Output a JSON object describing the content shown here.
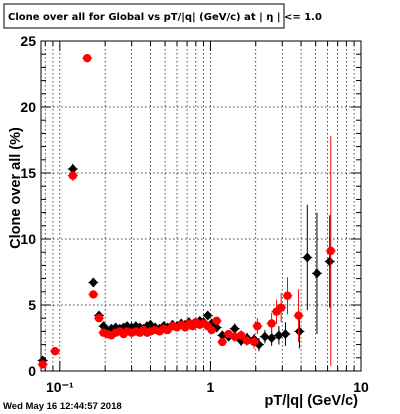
{
  "chart_data": {
    "type": "scatter",
    "title": "Clone  over all for Global vs pT/|q| (GeV/c) at |  η | <= 1.0",
    "xlabel": "pT/|q| (GeV/c)",
    "ylabel": "Clone  over all (%)",
    "xscale": "log",
    "xlim": [
      0.075,
      10
    ],
    "ylim": [
      0,
      25
    ],
    "grid": true,
    "x_tick_labels": [
      "10⁻¹",
      "1",
      "10"
    ],
    "y_tick_labels": [
      "0",
      "5",
      "10",
      "15",
      "20",
      "25"
    ],
    "series": [
      {
        "color": "#000000",
        "marker": "diamond",
        "points": [
          {
            "x": 0.077,
            "y": 0.8,
            "yerr": 0.3
          },
          {
            "x": 0.122,
            "y": 15.3,
            "yerr": 0.4
          },
          {
            "x": 0.167,
            "y": 6.7,
            "yerr": 0.3
          },
          {
            "x": 0.182,
            "y": 4.2,
            "yerr": 0.2
          },
          {
            "x": 0.195,
            "y": 3.4,
            "yerr": 0.2
          },
          {
            "x": 0.207,
            "y": 3.0,
            "yerr": 0.2
          },
          {
            "x": 0.22,
            "y": 3.2,
            "yerr": 0.2
          },
          {
            "x": 0.235,
            "y": 3.3,
            "yerr": 0.2
          },
          {
            "x": 0.25,
            "y": 3.2,
            "yerr": 0.2
          },
          {
            "x": 0.265,
            "y": 3.3,
            "yerr": 0.2
          },
          {
            "x": 0.28,
            "y": 3.4,
            "yerr": 0.2
          },
          {
            "x": 0.3,
            "y": 3.3,
            "yerr": 0.2
          },
          {
            "x": 0.32,
            "y": 3.4,
            "yerr": 0.2
          },
          {
            "x": 0.34,
            "y": 3.3,
            "yerr": 0.2
          },
          {
            "x": 0.36,
            "y": 3.2,
            "yerr": 0.2
          },
          {
            "x": 0.38,
            "y": 3.4,
            "yerr": 0.2
          },
          {
            "x": 0.4,
            "y": 3.5,
            "yerr": 0.2
          },
          {
            "x": 0.43,
            "y": 3.3,
            "yerr": 0.2
          },
          {
            "x": 0.46,
            "y": 3.2,
            "yerr": 0.2
          },
          {
            "x": 0.49,
            "y": 3.4,
            "yerr": 0.2
          },
          {
            "x": 0.52,
            "y": 3.3,
            "yerr": 0.2
          },
          {
            "x": 0.56,
            "y": 3.5,
            "yerr": 0.2
          },
          {
            "x": 0.6,
            "y": 3.4,
            "yerr": 0.2
          },
          {
            "x": 0.64,
            "y": 3.6,
            "yerr": 0.2
          },
          {
            "x": 0.68,
            "y": 3.5,
            "yerr": 0.2
          },
          {
            "x": 0.72,
            "y": 3.7,
            "yerr": 0.2
          },
          {
            "x": 0.76,
            "y": 3.5,
            "yerr": 0.2
          },
          {
            "x": 0.8,
            "y": 3.6,
            "yerr": 0.2
          },
          {
            "x": 0.85,
            "y": 3.8,
            "yerr": 0.3
          },
          {
            "x": 0.9,
            "y": 3.7,
            "yerr": 0.3
          },
          {
            "x": 0.96,
            "y": 4.2,
            "yerr": 0.3
          },
          {
            "x": 1.02,
            "y": 3.6,
            "yerr": 0.3
          },
          {
            "x": 1.1,
            "y": 3.3,
            "yerr": 0.3
          },
          {
            "x": 1.2,
            "y": 2.7,
            "yerr": 0.3
          },
          {
            "x": 1.32,
            "y": 2.6,
            "yerr": 0.3
          },
          {
            "x": 1.45,
            "y": 3.2,
            "yerr": 0.4
          },
          {
            "x": 1.6,
            "y": 2.3,
            "yerr": 0.4
          },
          {
            "x": 1.75,
            "y": 2.5,
            "yerr": 0.4
          },
          {
            "x": 1.95,
            "y": 2.4,
            "yerr": 0.4
          },
          {
            "x": 2.1,
            "y": 2.0,
            "yerr": 0.5
          },
          {
            "x": 2.3,
            "y": 2.6,
            "yerr": 0.5
          },
          {
            "x": 2.55,
            "y": 2.5,
            "yerr": 0.6
          },
          {
            "x": 2.85,
            "y": 2.7,
            "yerr": 0.7
          },
          {
            "x": 3.15,
            "y": 2.8,
            "yerr": 0.9
          },
          {
            "x": 3.9,
            "y": 3.0,
            "yerr": 1.3
          },
          {
            "x": 4.4,
            "y": 8.6,
            "yerr": 4.0
          },
          {
            "x": 5.1,
            "y": 7.4,
            "yerr": 4.6
          },
          {
            "x": 6.2,
            "y": 8.3,
            "yerr": 3.5
          }
        ]
      },
      {
        "color": "#ff0000",
        "marker": "circle",
        "points": [
          {
            "x": 0.077,
            "y": 0.5,
            "yerr": 0.3
          },
          {
            "x": 0.093,
            "y": 1.5,
            "yerr": 0.2
          },
          {
            "x": 0.122,
            "y": 14.8,
            "yerr": 0.4
          },
          {
            "x": 0.152,
            "y": 23.7,
            "yerr": 0.3
          },
          {
            "x": 0.167,
            "y": 5.8,
            "yerr": 0.3
          },
          {
            "x": 0.182,
            "y": 4.0,
            "yerr": 0.2
          },
          {
            "x": 0.195,
            "y": 2.9,
            "yerr": 0.2
          },
          {
            "x": 0.207,
            "y": 2.8,
            "yerr": 0.2
          },
          {
            "x": 0.22,
            "y": 2.7,
            "yerr": 0.2
          },
          {
            "x": 0.235,
            "y": 2.9,
            "yerr": 0.2
          },
          {
            "x": 0.25,
            "y": 3.0,
            "yerr": 0.2
          },
          {
            "x": 0.265,
            "y": 2.8,
            "yerr": 0.2
          },
          {
            "x": 0.28,
            "y": 3.0,
            "yerr": 0.2
          },
          {
            "x": 0.3,
            "y": 2.9,
            "yerr": 0.2
          },
          {
            "x": 0.32,
            "y": 3.0,
            "yerr": 0.2
          },
          {
            "x": 0.34,
            "y": 2.9,
            "yerr": 0.2
          },
          {
            "x": 0.36,
            "y": 3.1,
            "yerr": 0.2
          },
          {
            "x": 0.38,
            "y": 2.9,
            "yerr": 0.2
          },
          {
            "x": 0.4,
            "y": 3.0,
            "yerr": 0.2
          },
          {
            "x": 0.43,
            "y": 3.1,
            "yerr": 0.2
          },
          {
            "x": 0.46,
            "y": 3.0,
            "yerr": 0.2
          },
          {
            "x": 0.49,
            "y": 3.2,
            "yerr": 0.2
          },
          {
            "x": 0.52,
            "y": 3.1,
            "yerr": 0.2
          },
          {
            "x": 0.56,
            "y": 3.4,
            "yerr": 0.2
          },
          {
            "x": 0.6,
            "y": 3.3,
            "yerr": 0.2
          },
          {
            "x": 0.64,
            "y": 3.5,
            "yerr": 0.2
          },
          {
            "x": 0.68,
            "y": 3.3,
            "yerr": 0.2
          },
          {
            "x": 0.72,
            "y": 3.6,
            "yerr": 0.2
          },
          {
            "x": 0.76,
            "y": 3.4,
            "yerr": 0.2
          },
          {
            "x": 0.8,
            "y": 3.7,
            "yerr": 0.3
          },
          {
            "x": 0.85,
            "y": 3.5,
            "yerr": 0.3
          },
          {
            "x": 0.9,
            "y": 3.6,
            "yerr": 0.3
          },
          {
            "x": 0.96,
            "y": 3.4,
            "yerr": 0.3
          },
          {
            "x": 1.02,
            "y": 3.1,
            "yerr": 0.3
          },
          {
            "x": 1.1,
            "y": 3.8,
            "yerr": 0.3
          },
          {
            "x": 1.2,
            "y": 2.2,
            "yerr": 0.3
          },
          {
            "x": 1.32,
            "y": 2.8,
            "yerr": 0.3
          },
          {
            "x": 1.45,
            "y": 2.6,
            "yerr": 0.4
          },
          {
            "x": 1.6,
            "y": 2.7,
            "yerr": 0.4
          },
          {
            "x": 1.75,
            "y": 2.3,
            "yerr": 0.4
          },
          {
            "x": 1.95,
            "y": 2.2,
            "yerr": 0.5
          },
          {
            "x": 2.05,
            "y": 3.4,
            "yerr": 0.6
          },
          {
            "x": 2.55,
            "y": 3.6,
            "yerr": 0.8
          },
          {
            "x": 2.75,
            "y": 4.5,
            "yerr": 0.9
          },
          {
            "x": 2.95,
            "y": 4.8,
            "yerr": 1.1
          },
          {
            "x": 3.25,
            "y": 5.7,
            "yerr": 1.4
          },
          {
            "x": 3.85,
            "y": 4.2,
            "yerr": 2.0
          },
          {
            "x": 6.3,
            "y": 9.1,
            "yerr": 8.7
          }
        ]
      }
    ]
  },
  "footer": {
    "timestamp": "Wed May 16 12:44:57 2018"
  }
}
